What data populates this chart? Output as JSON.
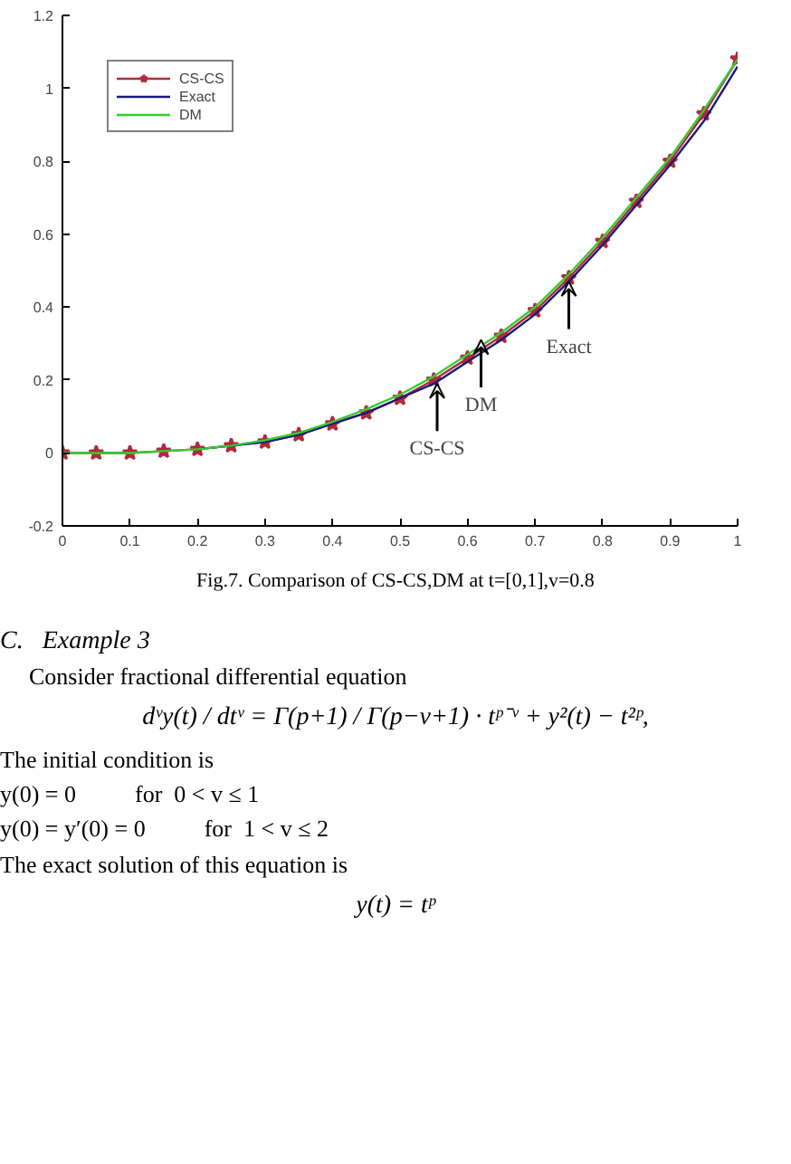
{
  "chart_data": {
    "type": "line",
    "x": [
      0,
      0.05,
      0.1,
      0.15,
      0.2,
      0.25,
      0.3,
      0.35,
      0.4,
      0.45,
      0.5,
      0.55,
      0.6,
      0.65,
      0.7,
      0.75,
      0.8,
      0.85,
      0.9,
      0.95,
      1
    ],
    "series": [
      {
        "name": "CS-CS",
        "color": "#b02a3a",
        "marker": "star",
        "values": [
          0,
          0,
          0,
          0.005,
          0.01,
          0.02,
          0.03,
          0.05,
          0.08,
          0.11,
          0.15,
          0.2,
          0.26,
          0.32,
          0.39,
          0.48,
          0.58,
          0.69,
          0.8,
          0.93,
          1.08
        ]
      },
      {
        "name": "Exact",
        "color": "#1a1a7a",
        "marker": "none",
        "values": [
          null,
          null,
          null,
          null,
          0.01,
          0.02,
          0.03,
          0.05,
          0.08,
          0.11,
          0.15,
          0.19,
          0.25,
          0.31,
          0.38,
          0.47,
          0.57,
          0.68,
          0.79,
          0.91,
          1.06
        ]
      },
      {
        "name": "DM",
        "color": "#33cc33",
        "marker": "none",
        "values": [
          0,
          0,
          0,
          0.005,
          0.01,
          0.02,
          0.035,
          0.055,
          0.085,
          0.12,
          0.16,
          0.21,
          0.27,
          0.33,
          0.4,
          0.49,
          0.59,
          0.7,
          0.81,
          0.94,
          1.08
        ]
      }
    ],
    "xlim": [
      0,
      1
    ],
    "xticks": [
      0,
      0.1,
      0.2,
      0.3,
      0.4,
      0.5,
      0.6,
      0.7,
      0.8,
      0.9,
      1
    ],
    "ylim": [
      -0.2,
      1.2
    ],
    "yticks": [
      -0.2,
      0,
      0.2,
      0.4,
      0.6,
      0.8,
      1,
      1.2
    ],
    "legend": "top left",
    "grid": false,
    "line_style": "solid",
    "annotations": [
      {
        "text": "DM",
        "x": 0.62,
        "y": 0.31
      },
      {
        "text": "Exact",
        "x": 0.75,
        "y": 0.47
      },
      {
        "text": "CS-CS",
        "x": 0.555,
        "y": 0.19
      },
      "Fig.7. Comparison of CS-CS,DM at t=[0,1],v=0.8",
      "C.   Example 3",
      "Consider fractional differential equation",
      "dᵛy(t) / dtᵛ = Γ(p+1) / Γ(p−v+1) · tᵖ⁻ᵛ + y²(t) − t²ᵖ,",
      "The initial condition is",
      "y(0) = 0          for  0 < v ≤ 1",
      "y(0) = y′(0) = 0          for  1 < v ≤ 2",
      "The exact solution of this equation is",
      "y(t) = tᵖ"
    ]
  }
}
